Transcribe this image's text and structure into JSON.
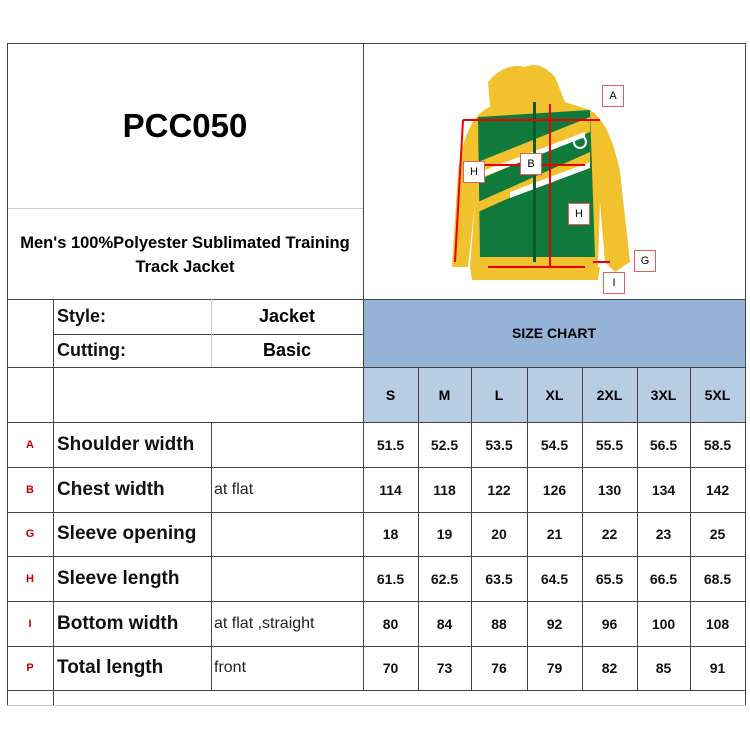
{
  "product_code": "PCC050",
  "product_title": "Men's 100%Polyester Sublimated Training Track Jacket",
  "style": {
    "label": "Style:",
    "value": "Jacket"
  },
  "cutting": {
    "label": "Cutting:",
    "value": "Basic"
  },
  "size_chart_title": "SIZE CHART",
  "sizes": [
    "S",
    "M",
    "L",
    "XL",
    "2XL",
    "3XL",
    "5XL"
  ],
  "rows": [
    {
      "code": "A",
      "name": "Shoulder width",
      "note": "",
      "values": [
        "51.5",
        "52.5",
        "53.5",
        "54.5",
        "55.5",
        "56.5",
        "58.5"
      ]
    },
    {
      "code": "B",
      "name": "Chest width",
      "note": "at flat",
      "values": [
        "114",
        "118",
        "122",
        "126",
        "130",
        "134",
        "142"
      ]
    },
    {
      "code": "G",
      "name": "Sleeve opening",
      "note": "",
      "values": [
        "18",
        "19",
        "20",
        "21",
        "22",
        "23",
        "25"
      ]
    },
    {
      "code": "H",
      "name": "Sleeve length",
      "note": "",
      "values": [
        "61.5",
        "62.5",
        "63.5",
        "64.5",
        "65.5",
        "66.5",
        "68.5"
      ]
    },
    {
      "code": "I",
      "name": "Bottom width",
      "note": "at flat ,straight",
      "values": [
        "80",
        "84",
        "88",
        "92",
        "96",
        "100",
        "108"
      ]
    },
    {
      "code": "P",
      "name": "Total length",
      "note": "front",
      "values": [
        "70",
        "73",
        "76",
        "79",
        "82",
        "85",
        "91"
      ]
    }
  ],
  "diagram_labels": {
    "a": "A",
    "b": "B",
    "h1": "H",
    "h2": "H",
    "g": "G",
    "i": "I"
  },
  "colors": {
    "header_blue": "#95b3d7",
    "size_row_blue": "#b8cce4",
    "label_red": "#c00000",
    "jacket_yellow": "#f2c12e",
    "jacket_green": "#0f7a3c"
  }
}
